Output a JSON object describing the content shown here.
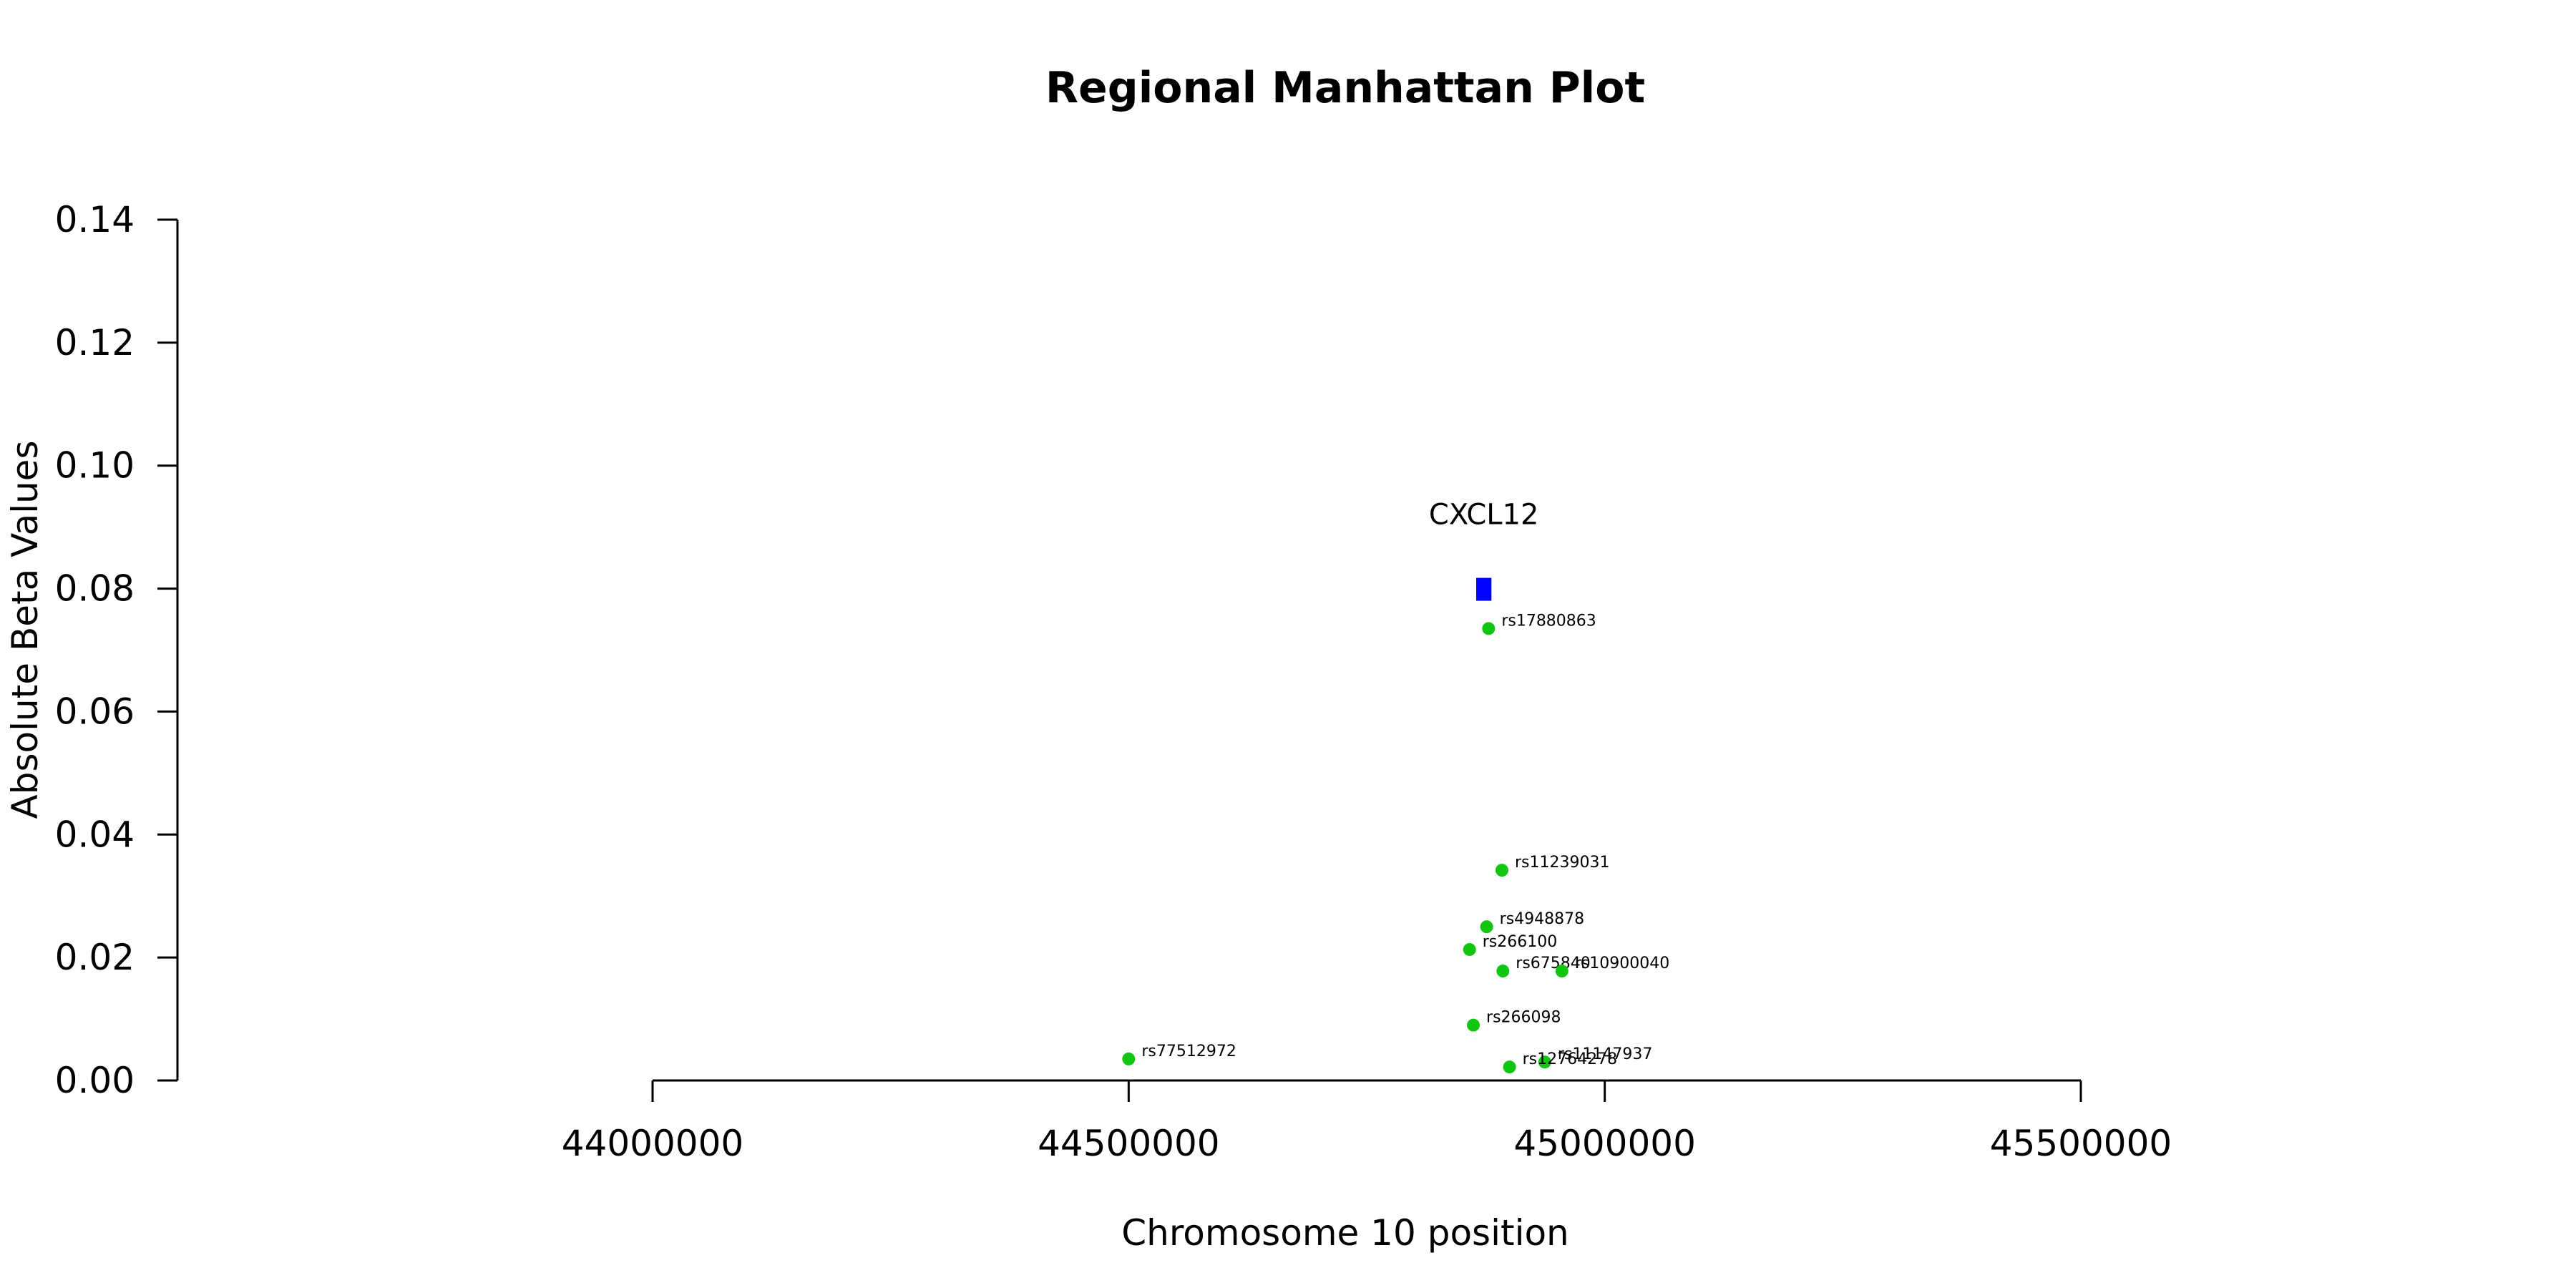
{
  "chart_data": {
    "type": "scatter",
    "title": "Regional Manhattan Plot",
    "xlabel": "Chromosome 10 position",
    "ylabel": "Absolute Beta Values",
    "xlim": [
      44000000,
      45500000
    ],
    "ylim": [
      0,
      0.14
    ],
    "xticks": [
      44000000,
      44500000,
      45000000,
      45500000
    ],
    "xtick_labels": [
      "44000000",
      "44500000",
      "45000000",
      "45500000"
    ],
    "yticks": [
      0,
      0.02,
      0.04,
      0.06,
      0.08,
      0.1,
      0.12,
      0.14
    ],
    "ytick_labels": [
      "0.00",
      "0.02",
      "0.04",
      "0.06",
      "0.08",
      "0.10",
      "0.12",
      "0.14"
    ],
    "grid": false,
    "gene": {
      "name": "CXCL12",
      "start": 44865000,
      "end": 44881000,
      "value": 0.08,
      "color": "#0000ff"
    },
    "points": [
      {
        "label": "rs17880863",
        "x": 44878000,
        "y": 0.0735
      },
      {
        "label": "rs11239031",
        "x": 44892000,
        "y": 0.0342
      },
      {
        "label": "rs4948878",
        "x": 44876000,
        "y": 0.025
      },
      {
        "label": "rs266100",
        "x": 44858000,
        "y": 0.0213
      },
      {
        "label": "rs675840",
        "x": 44893000,
        "y": 0.0178
      },
      {
        "label": "rs10900040",
        "x": 44955000,
        "y": 0.0178
      },
      {
        "label": "rs266098",
        "x": 44862000,
        "y": 0.009
      },
      {
        "label": "rs77512972",
        "x": 44500000,
        "y": 0.0035
      },
      {
        "label": "rs11147937",
        "x": 44937000,
        "y": 0.003
      },
      {
        "label": "rs12764278",
        "x": 44900000,
        "y": 0.0022
      }
    ],
    "point_color": "#11c511"
  }
}
